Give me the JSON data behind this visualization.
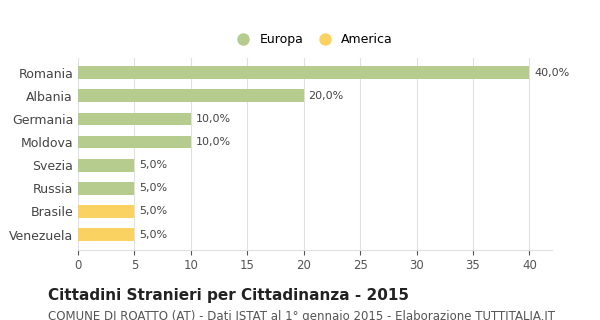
{
  "categories": [
    "Venezuela",
    "Brasile",
    "Russia",
    "Svezia",
    "Moldova",
    "Germania",
    "Albania",
    "Romania"
  ],
  "values": [
    5.0,
    5.0,
    5.0,
    5.0,
    10.0,
    10.0,
    20.0,
    40.0
  ],
  "colors": [
    "#f9d262",
    "#f9d262",
    "#b5cc8e",
    "#b5cc8e",
    "#b5cc8e",
    "#b5cc8e",
    "#b5cc8e",
    "#b5cc8e"
  ],
  "labels": [
    "5,0%",
    "5,0%",
    "5,0%",
    "5,0%",
    "10,0%",
    "10,0%",
    "20,0%",
    "40,0%"
  ],
  "europa_color": "#b5cc8e",
  "america_color": "#f9d262",
  "legend_europa": "Europa",
  "legend_america": "America",
  "xlim": [
    0,
    42
  ],
  "xticks": [
    0,
    5,
    10,
    15,
    20,
    25,
    30,
    35,
    40
  ],
  "title": "Cittadini Stranieri per Cittadinanza - 2015",
  "subtitle": "COMUNE DI ROATTO (AT) - Dati ISTAT al 1° gennaio 2015 - Elaborazione TUTTITALIA.IT",
  "title_fontsize": 11,
  "subtitle_fontsize": 8.5,
  "bar_height": 0.55,
  "bg_color": "#ffffff",
  "grid_color": "#e0e0e0",
  "label_fontsize": 8,
  "tick_fontsize": 8.5,
  "ytick_fontsize": 9
}
